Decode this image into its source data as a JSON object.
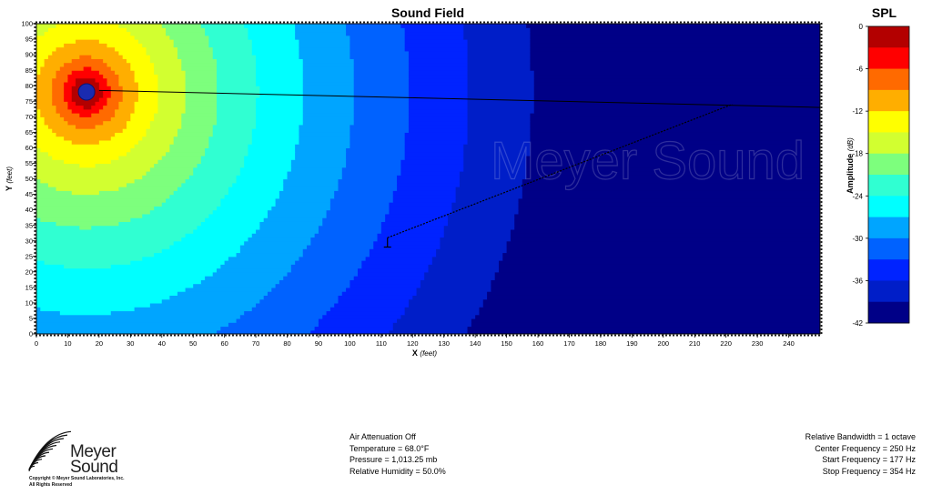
{
  "chart_data": {
    "type": "heatmap",
    "title": "Sound Field",
    "xlabel": "X",
    "xlabel_unit": "(feet)",
    "ylabel": "Y",
    "ylabel_unit": "(feet)",
    "xlim": [
      0,
      250
    ],
    "ylim": [
      0,
      100
    ],
    "x_ticks": [
      0,
      10,
      20,
      30,
      40,
      50,
      60,
      70,
      80,
      90,
      100,
      110,
      120,
      130,
      140,
      150,
      160,
      170,
      180,
      190,
      200,
      210,
      220,
      230,
      240
    ],
    "y_ticks": [
      0,
      5,
      10,
      15,
      20,
      25,
      30,
      35,
      40,
      45,
      50,
      55,
      60,
      65,
      70,
      75,
      80,
      85,
      90,
      95,
      100
    ],
    "source": {
      "x": 16,
      "y": 78
    },
    "measurement_line": [
      {
        "x": 20,
        "y": 78.5
      },
      {
        "x": 250,
        "y": 73
      }
    ],
    "dashed_line": [
      {
        "x": 112,
        "y": 31
      },
      {
        "x": 222,
        "y": 74
      }
    ],
    "mic_marker": {
      "x": 112,
      "y": 28
    },
    "watermark": "Meyer Sound",
    "colorbar": {
      "title": "SPL",
      "label": "Amplitude",
      "unit": "(dB)",
      "range": [
        -42,
        0
      ],
      "ticks": [
        0,
        -6,
        -12,
        -18,
        -24,
        -30,
        -36,
        -42
      ],
      "step_db": 3,
      "colors": [
        "#b30000",
        "#ff0000",
        "#ff6a00",
        "#ffae00",
        "#ffff00",
        "#d2ff30",
        "#7dff7d",
        "#30ffd2",
        "#00ffff",
        "#00a5ff",
        "#0062ff",
        "#0023ff",
        "#001ec8",
        "#000087"
      ]
    }
  },
  "footer": {
    "left": {
      "brand": [
        "Meyer",
        "Sound"
      ],
      "copyright": "Copyright © Meyer Sound Laboratories, Inc.",
      "rights": "All Rights Reserved"
    },
    "middle": [
      "Air Attenuation Off",
      "Temperature = 68.0°F",
      "Pressure = 1,013.25  mb",
      "Relative Humidity = 50.0%"
    ],
    "right": [
      "Relative Bandwidth = 1 octave",
      "Center Frequency = 250 Hz",
      "Start Frequency = 177 Hz",
      "Stop Frequency = 354 Hz"
    ]
  }
}
